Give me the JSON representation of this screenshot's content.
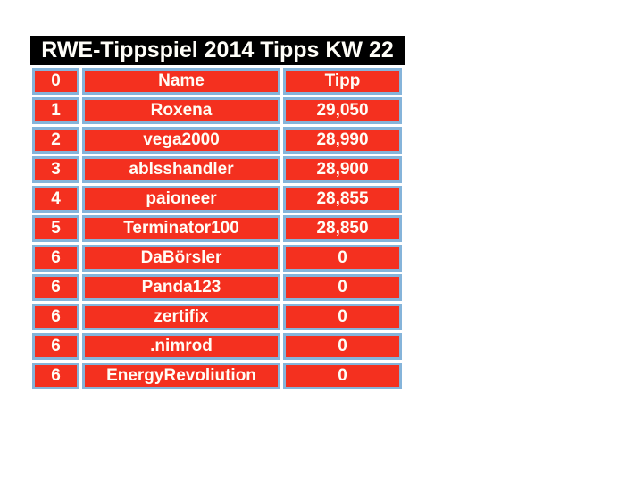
{
  "title": "RWE-Tippspiel 2014 Tipps KW 22",
  "colors": {
    "title_bg": "#000000",
    "cell_red": "#f4301f",
    "border_blue": "#85b4da",
    "text_white": "#fffdf6"
  },
  "chart_data": {
    "type": "table",
    "title": "RWE-Tippspiel 2014 Tipps KW 22",
    "columns": [
      "0",
      "Name",
      "Tipp"
    ],
    "rows": [
      [
        "1",
        "Roxena",
        "29,050"
      ],
      [
        "2",
        "vega2000",
        "28,990"
      ],
      [
        "3",
        "ablsshandler",
        "28,900"
      ],
      [
        "4",
        "paioneer",
        "28,855"
      ],
      [
        "5",
        "Terminator100",
        "28,850"
      ],
      [
        "6",
        "DaBörsler",
        "0"
      ],
      [
        "6",
        "Panda123",
        "0"
      ],
      [
        "6",
        "zertifix",
        "0"
      ],
      [
        "6",
        ".nimrod",
        "0"
      ],
      [
        "6",
        "EnergyRevoliution",
        "0"
      ]
    ]
  }
}
